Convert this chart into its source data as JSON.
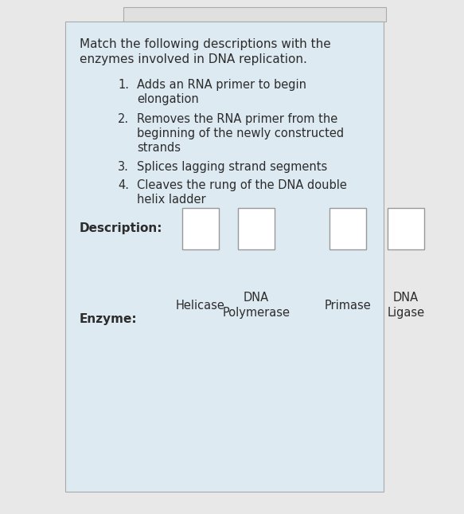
{
  "title_line1": "Match the following descriptions with the",
  "title_line2": "enzymes involved in DNA replication.",
  "items": [
    {
      "num": "1.",
      "line1": "Adds an RNA primer to begin",
      "line2": "elongation",
      "line3": null
    },
    {
      "num": "2.",
      "line1": "Removes the RNA primer from the",
      "line2": "beginning of the newly constructed",
      "line3": "strands"
    },
    {
      "num": "3.",
      "line1": "Splices lagging strand segments",
      "line2": null,
      "line3": null
    },
    {
      "num": "4.",
      "line1": "Cleaves the rung of the DNA double",
      "line2": "helix ladder",
      "line3": null
    }
  ],
  "description_label": "Description:",
  "enzyme_label": "Enzyme:",
  "enzymes": [
    {
      "line1": null,
      "line2": "Helicase"
    },
    {
      "line1": "DNA",
      "line2": "Polymerase"
    },
    {
      "line1": null,
      "line2": "Primase"
    },
    {
      "line1": "DNA",
      "line2": "Ligase"
    }
  ],
  "bg_outer": "#e8e8e8",
  "bg_card": "#ddeaf2",
  "bg_white": "#ffffff",
  "border_color": "#aaaaaa",
  "text_color": "#2c2c2c",
  "top_bar_color": "#e0e0e0",
  "title_fontsize": 11.0,
  "body_fontsize": 10.5,
  "label_fontsize": 11.0,
  "enzyme_fontsize": 10.5
}
